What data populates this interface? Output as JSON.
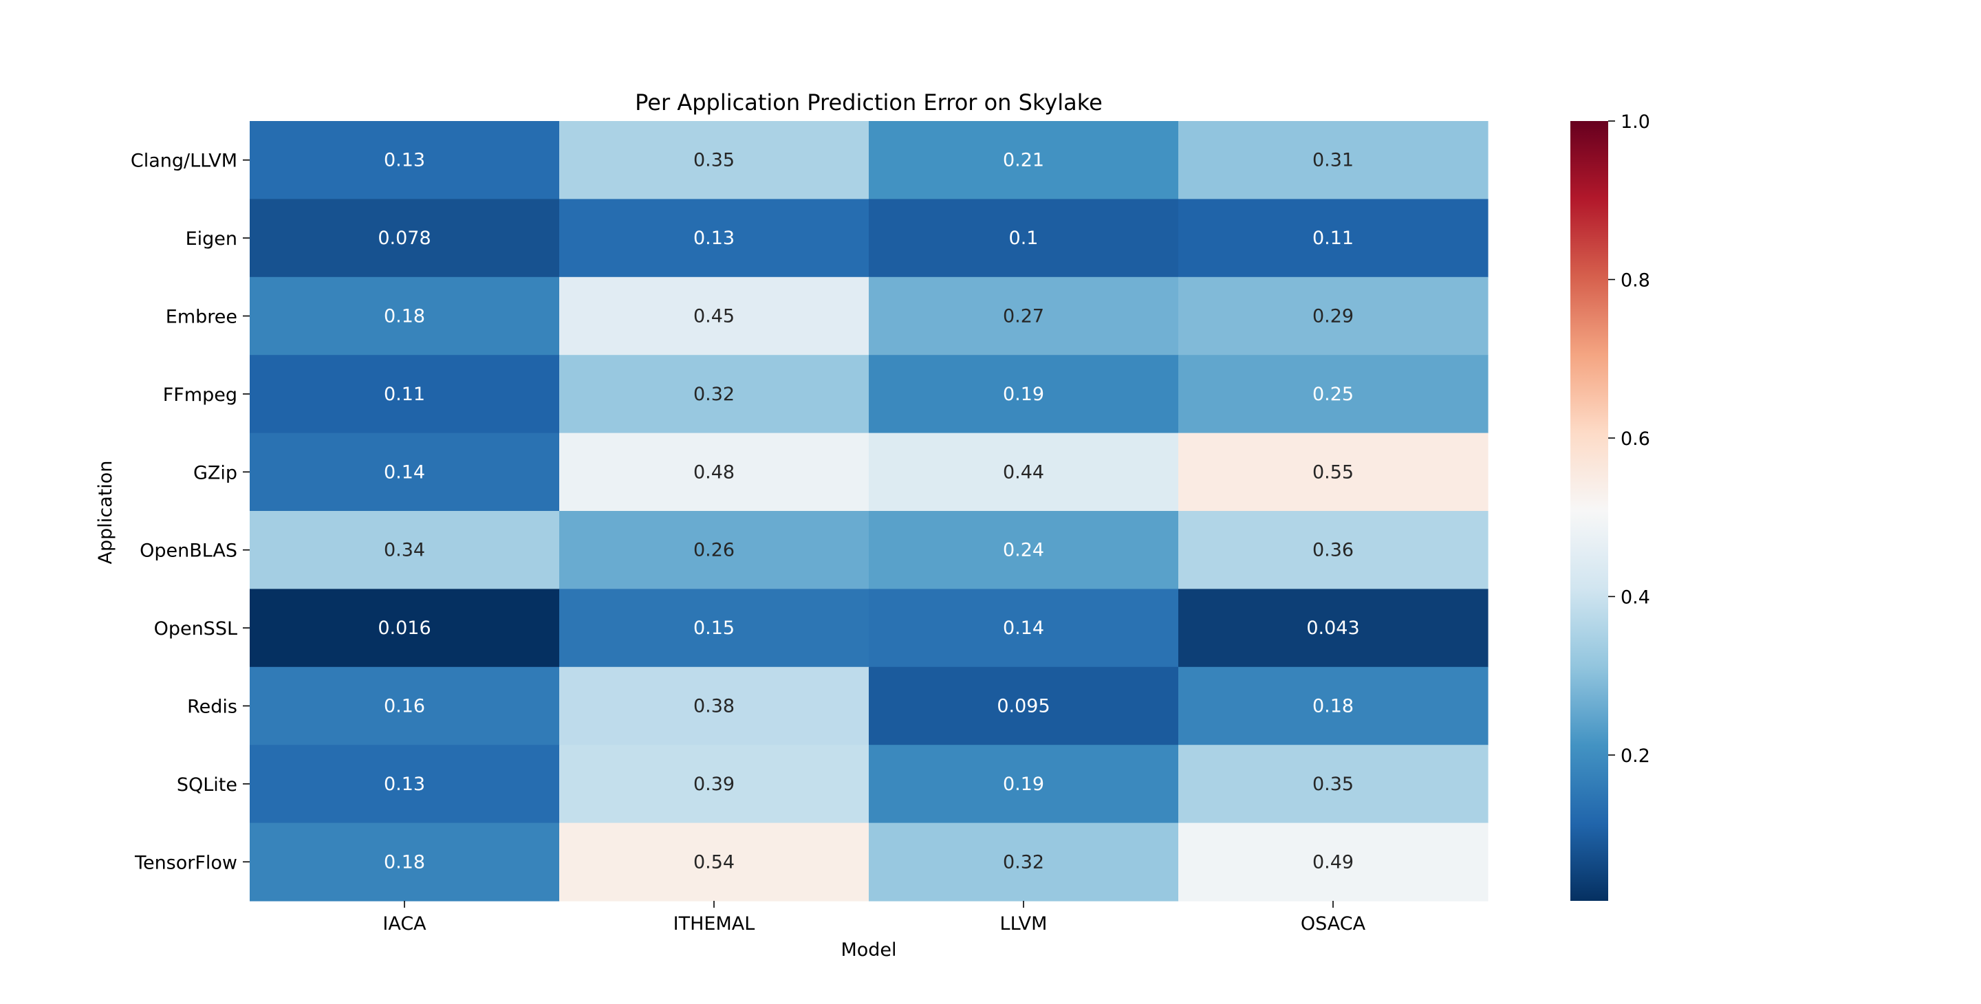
{
  "chart_data": {
    "type": "heatmap",
    "title": "Per Application Prediction Error on Skylake",
    "xlabel": "Model",
    "ylabel": "Application",
    "x_categories": [
      "IACA",
      "ITHEMAL",
      "LLVM",
      "OSACA"
    ],
    "y_categories": [
      "Clang/LLVM",
      "Eigen",
      "Embree",
      "FFmpeg",
      "GZip",
      "OpenBLAS",
      "OpenSSL",
      "Redis",
      "SQLite",
      "TensorFlow"
    ],
    "values": [
      [
        0.13,
        0.35,
        0.21,
        0.31
      ],
      [
        0.078,
        0.13,
        0.1,
        0.11
      ],
      [
        0.18,
        0.45,
        0.27,
        0.29
      ],
      [
        0.11,
        0.32,
        0.19,
        0.25
      ],
      [
        0.14,
        0.48,
        0.44,
        0.55
      ],
      [
        0.34,
        0.26,
        0.24,
        0.36
      ],
      [
        0.016,
        0.15,
        0.14,
        0.043
      ],
      [
        0.16,
        0.38,
        0.095,
        0.18
      ],
      [
        0.13,
        0.39,
        0.19,
        0.35
      ],
      [
        0.18,
        0.54,
        0.32,
        0.49
      ]
    ],
    "colormap": "RdBu_r",
    "vmin": 0.016,
    "vmax": 1.0,
    "colorbar_ticks": [
      "0.2",
      "0.4",
      "0.6",
      "0.8",
      "1.0"
    ],
    "annotations": true
  }
}
